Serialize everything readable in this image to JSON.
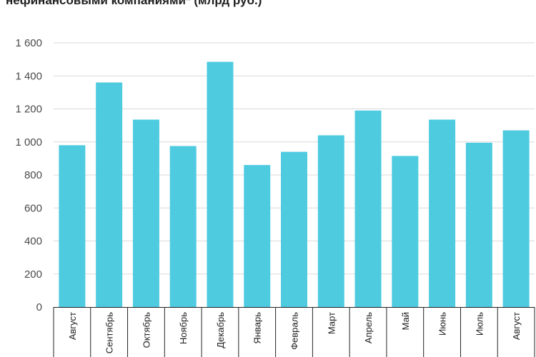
{
  "chart_data": {
    "type": "bar",
    "title": "нефинансовыми компаниями* (млрд руб.)",
    "categories": [
      "Август",
      "Сентябрь",
      "Октябрь",
      "Ноябрь",
      "Декабрь",
      "Январь",
      "Февраль",
      "Март",
      "Апрель",
      "Май",
      "Июнь",
      "Июль",
      "Август"
    ],
    "values": [
      980,
      1360,
      1135,
      975,
      1485,
      860,
      940,
      1040,
      1190,
      915,
      1135,
      995,
      1070
    ],
    "yticks": [
      "0",
      "200",
      "400",
      "600",
      "800",
      "1 000",
      "1 200",
      "1 400",
      "1 600"
    ],
    "ylim": [
      0,
      1600
    ],
    "xlabel": "",
    "ylabel": "",
    "grid": true,
    "bar_color": "#4fcbe0",
    "axis_color": "#222222",
    "grid_color": "#d9d9d9"
  }
}
